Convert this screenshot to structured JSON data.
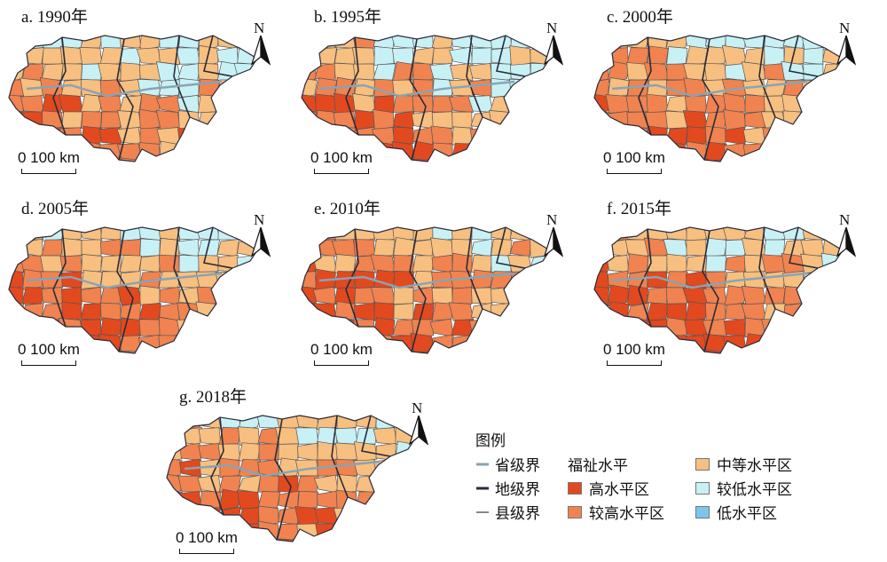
{
  "panels": [
    {
      "title": "a. 1990年",
      "scale": "0  100 km",
      "north": "N"
    },
    {
      "title": "b. 1995年",
      "scale": "0  100 km",
      "north": "N"
    },
    {
      "title": "c. 2000年",
      "scale": "0  100 km",
      "north": "N"
    },
    {
      "title": "d. 2005年",
      "scale": "0  100 km",
      "north": "N"
    },
    {
      "title": "e. 2010年",
      "scale": "0  100 km",
      "north": "N"
    },
    {
      "title": "f. 2015年",
      "scale": "0  100 km",
      "north": "N"
    },
    {
      "title": "g. 2018年",
      "scale": "0  100 km",
      "north": "N"
    }
  ],
  "legend": {
    "title": "图例",
    "province_boundary": "省级界",
    "city_boundary": "地级界",
    "county_boundary": "县级界",
    "welfare_level": "福祉水平",
    "classes": {
      "high": "高水平区",
      "higher": "较高水平区",
      "medium": "中等水平区",
      "lower": "较低水平区",
      "low": "低水平区"
    }
  },
  "colors": {
    "high": "#e2491f",
    "higher": "#f08350",
    "medium": "#f7bf80",
    "lower": "#c8f1f6",
    "low": "#7cc6ee",
    "province_line": "#8aa3b2",
    "city_line": "#2b2b3a",
    "county_line": "#555555"
  },
  "map_legend_icons": {
    "north_arrow": "north-arrow-icon"
  }
}
